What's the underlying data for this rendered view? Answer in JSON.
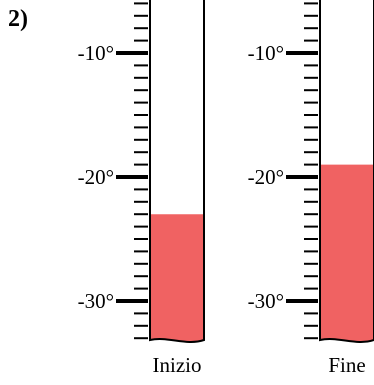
{
  "problem_number": "2)",
  "colors": {
    "mercury": "#f06262",
    "outline": "#000000",
    "tube_fill": "#ffffff"
  },
  "scale": {
    "min": -33,
    "max": -6,
    "major_ticks": [
      -10,
      -20,
      -30
    ],
    "minor_step": 1,
    "major_labels": [
      "-10°",
      "-20°",
      "-30°"
    ]
  },
  "thermometers": [
    {
      "label": "Inizio",
      "reading": -23
    },
    {
      "label": "Fine",
      "reading": -19
    }
  ]
}
